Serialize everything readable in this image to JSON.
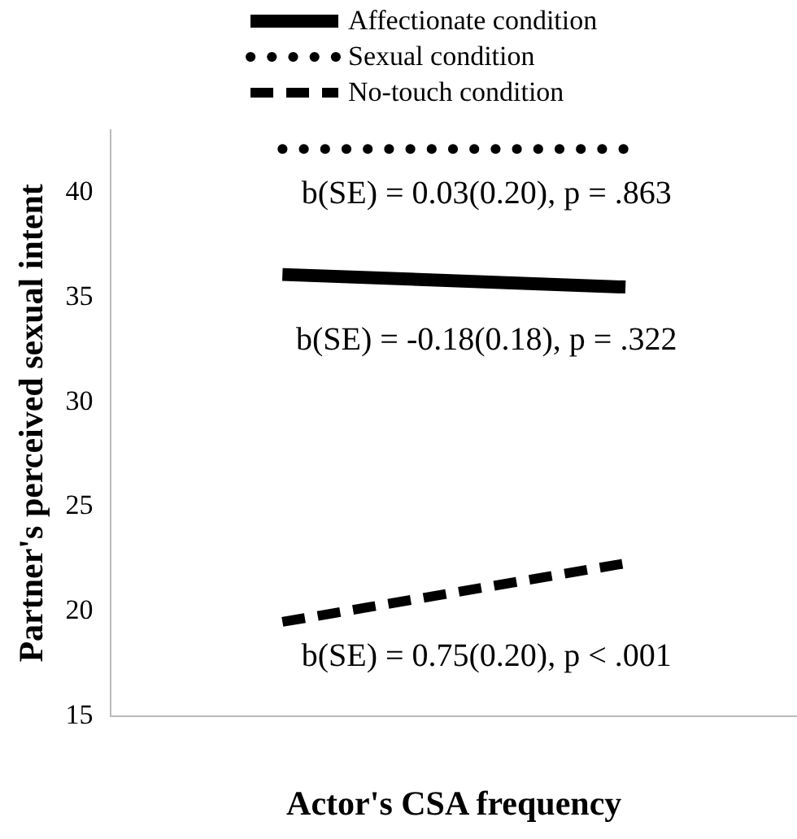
{
  "chart_data": {
    "type": "line",
    "xlabel": "Actor's CSA frequency",
    "ylabel": "Partner's perceived sexual intent",
    "categories": [
      null,
      null
    ],
    "series": [
      {
        "name": "Affectionate condition",
        "color": "#000000",
        "line_style": "solid",
        "values": [
          36.1,
          35.5
        ]
      },
      {
        "name": "Sexual condition",
        "color": "#000000",
        "line_style": "dotted",
        "values": [
          42.1,
          42.1
        ]
      },
      {
        "name": "No-touch condition",
        "color": "#000000",
        "line_style": "dashed",
        "values": [
          19.5,
          22.3
        ]
      }
    ],
    "ylim": [
      15,
      43
    ],
    "yticks": [
      15,
      20,
      25,
      30,
      35,
      40
    ],
    "grid": false,
    "legend": "top",
    "marker": "none",
    "annotations": [
      "b(SE) = 0.03(0.20), p = .863",
      "b(SE) = -0.18(0.18), p = .322",
      "b(SE) = 0.75(0.20), p < .001"
    ]
  }
}
